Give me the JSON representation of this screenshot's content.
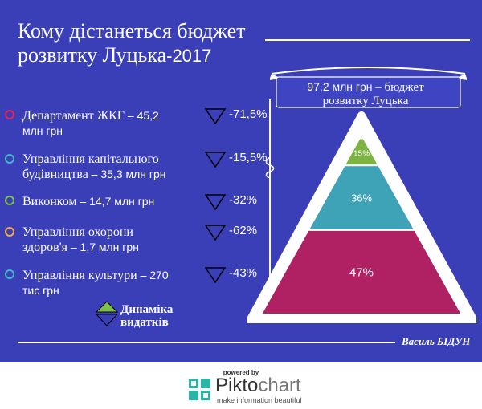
{
  "title": {
    "line1": "Кому дістанеться бюджет",
    "line2_main": "розвитку Луцька",
    "line2_year": "-2017"
  },
  "items": [
    {
      "name": "Департамент ЖКГ",
      "amount_line1": " – 45,2",
      "amount_line2": "млн грн",
      "change": "-71,5%",
      "color": "#e4235e"
    },
    {
      "name": "Управління капітального",
      "name2": "будівництва",
      "amount": " – 35,3 млн грн",
      "change": "-15,5%",
      "color": "#44b4c9"
    },
    {
      "name": "Виконком",
      "amount": " – 14,7 млн грн",
      "change": "-32%",
      "color": "#7cc04a"
    },
    {
      "name": "Управління охорони",
      "name2": "здоров'я",
      "amount": " – 1,7 млн грн",
      "change": "-62%",
      "color": "#f5a742"
    },
    {
      "name": "Управління культури",
      "amount_line1": " – 270",
      "amount_line2": "тис грн",
      "change": "-43%",
      "color": "#44b4c9"
    }
  ],
  "banner": {
    "amount": "97,2 млн грн",
    "label_rest": " – бюджет",
    "label_line2": "розвитку Луцька"
  },
  "legend": {
    "line1": "Динаміка",
    "line2": "видатків"
  },
  "author": "Василь БІДУН",
  "footer": {
    "powered": "powered by",
    "brand_a": "Pikto",
    "brand_b": "chart",
    "tagline": "make information beautiful"
  },
  "chart_data": {
    "type": "pyramid",
    "segments": [
      {
        "label": "47%",
        "value": 47,
        "color": "#b02163"
      },
      {
        "label": "36%",
        "value": 36,
        "color": "#3fa3b8"
      },
      {
        "label": "15%",
        "value": 15,
        "color": "#7cb342"
      },
      {
        "label": "",
        "value": 2,
        "color": "#f2b134"
      }
    ]
  }
}
